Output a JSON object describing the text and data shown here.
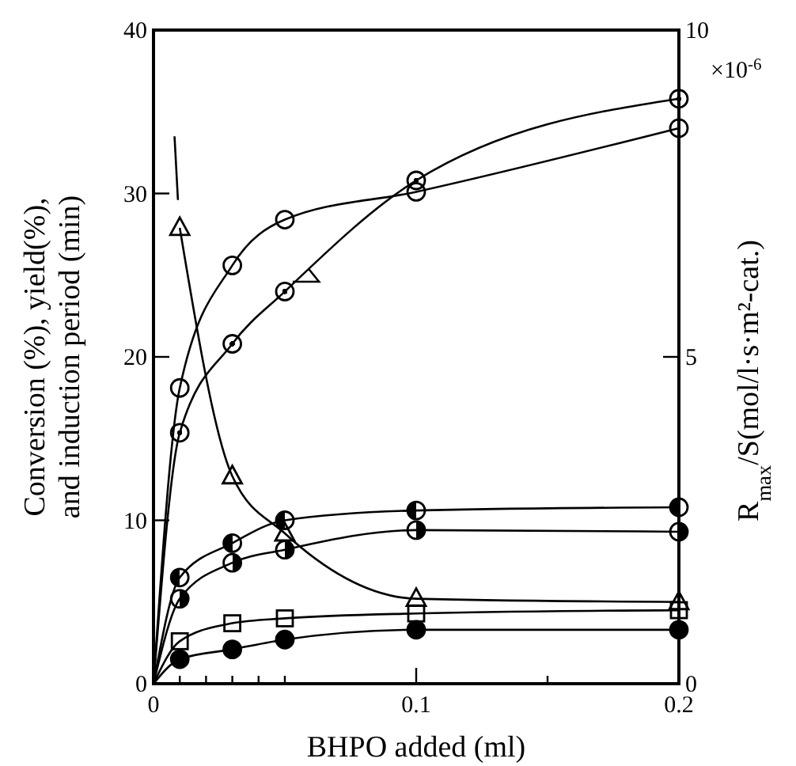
{
  "chart_data": {
    "type": "scatter",
    "xlabel": "BHPO added (ml)",
    "ylabel": "Conversion (%), yield(%),\nand induction period (min)",
    "y2label": "R$_{max}$/S(mol/l·s·m²-cat.)",
    "annotations": [
      "×10$^{-6}$"
    ],
    "xlim": [
      0,
      0.2
    ],
    "xticks": [
      0,
      {
        "value": 0.01,
        "label": null
      },
      {
        "value": 0.02,
        "label": null
      },
      {
        "value": 0.03,
        "label": null
      },
      {
        "value": 0.04,
        "label": null
      },
      {
        "value": 0.05,
        "label": null
      },
      0.1,
      {
        "value": 0.15,
        "label": null
      },
      0.2
    ],
    "ylim": [
      0,
      40
    ],
    "yticks": [
      0,
      10,
      20,
      30,
      40
    ],
    "y2lim": [
      0,
      10
    ],
    "y2ticks": [
      0,
      5,
      10
    ],
    "grid": false,
    "series": [
      {
        "marker": "circle",
        "color": "#000000",
        "x": [
          0.01,
          0.03,
          0.05,
          0.1,
          0.2
        ],
        "values": [
          18.1,
          25.6,
          28.4,
          30.1,
          34.0
        ]
      },
      {
        "marker": "circle",
        "axis": "y2",
        "color": "#000000",
        "x": [
          0.01,
          0.03,
          0.05,
          0.1,
          0.2
        ],
        "values": [
          3.84,
          5.2,
          6.0,
          7.7,
          8.95
        ]
      },
      {
        "type": "line",
        "marker": "triangle",
        "color": "#000000",
        "x": [
          0.01,
          0.03,
          0.05,
          0.1,
          0.2
        ],
        "values": [
          27.9,
          12.7,
          9.2,
          5.2,
          5.0
        ]
      },
      {
        "marker": "circle",
        "color": "#000000",
        "x": [
          0.01,
          0.03,
          0.05,
          0.1,
          0.2
        ],
        "values": [
          6.5,
          8.6,
          10.0,
          10.6,
          10.8
        ]
      },
      {
        "marker": "circle",
        "color": "#000000",
        "x": [
          0.01,
          0.03,
          0.05,
          0.1,
          0.2
        ],
        "values": [
          5.2,
          7.4,
          8.2,
          9.4,
          9.3
        ]
      },
      {
        "marker": "square",
        "color": "#000000",
        "x": [
          0.01,
          0.03,
          0.05,
          0.1,
          0.2
        ],
        "values": [
          2.6,
          3.7,
          4.0,
          4.3,
          4.5
        ]
      },
      {
        "marker": "circle",
        "color": "#000000",
        "x": [
          0.01,
          0.03,
          0.05,
          0.1,
          0.2
        ],
        "values": [
          1.5,
          2.1,
          2.7,
          3.3,
          3.3
        ]
      },
      {
        "type": "line",
        "color": "#000000",
        "x": [
          0,
          0.01,
          0.03,
          0.05,
          0.1,
          0.2
        ],
        "values": [
          0,
          18.1,
          25.6,
          28.4,
          30.1,
          34.0
        ]
      },
      {
        "type": "line",
        "axis": "y2",
        "color": "#000000",
        "x": [
          0,
          0.01,
          0.03,
          0.05,
          0.1,
          0.2
        ],
        "values": [
          0,
          3.84,
          5.2,
          6.0,
          7.7,
          8.95
        ]
      },
      {
        "type": "line",
        "color": "#000000",
        "x": [
          0.008,
          0.0093
        ],
        "values": [
          33.5,
          29.6
        ]
      },
      {
        "type": "line",
        "color": "#000000",
        "x": [
          0,
          0.01,
          0.03,
          0.05,
          0.1,
          0.2
        ],
        "values": [
          0,
          6.5,
          8.6,
          10.0,
          10.6,
          10.8
        ]
      },
      {
        "type": "line",
        "color": "#000000",
        "x": [
          0,
          0.01,
          0.03,
          0.05,
          0.1,
          0.2
        ],
        "values": [
          0,
          5.2,
          7.4,
          8.2,
          9.4,
          9.3
        ]
      },
      {
        "type": "line",
        "color": "#000000",
        "x": [
          0,
          0.01,
          0.03,
          0.05,
          0.1,
          0.2
        ],
        "values": [
          0,
          2.6,
          3.7,
          4.0,
          4.3,
          4.5
        ]
      },
      {
        "type": "line",
        "color": "#000000",
        "x": [
          0,
          0.01,
          0.03,
          0.05,
          0.1,
          0.2
        ],
        "values": [
          0,
          1.5,
          2.1,
          2.7,
          3.3,
          3.3
        ]
      }
    ]
  }
}
